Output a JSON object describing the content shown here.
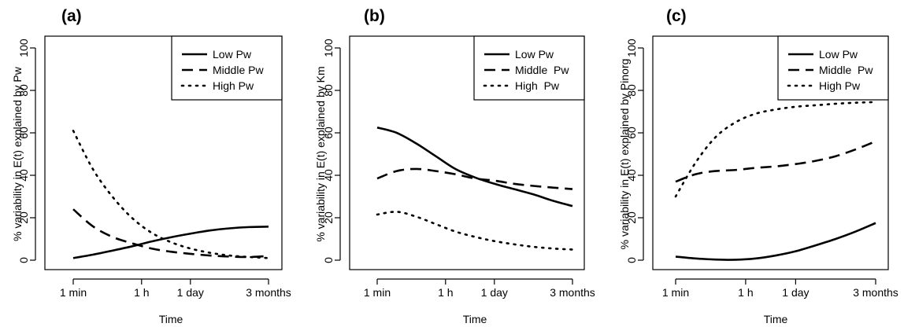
{
  "chart_data": [
    {
      "type": "line",
      "title": "(a)",
      "xlabel": "Time",
      "ylabel": "% variability in E(t) explained by Pw",
      "x_tick_labels": [
        "1 min",
        "1 h",
        "1 day",
        "3 months"
      ],
      "ylim": [
        0,
        100
      ],
      "y_ticks": [
        "0",
        "20",
        "40",
        "60",
        "80",
        "100"
      ],
      "legend_position": "top-right",
      "series": [
        {
          "name": "Low Pw",
          "style": "solid",
          "x": [
            0,
            0.1,
            0.2,
            0.3,
            0.4,
            0.5,
            0.6,
            0.7,
            0.8,
            0.9,
            1.0
          ],
          "y": [
            1,
            2.6,
            4.5,
            6.5,
            8.8,
            10.8,
            12.5,
            14,
            15,
            15.6,
            15.8
          ]
        },
        {
          "name": "Middle Pw",
          "style": "dashed",
          "x": [
            0,
            0.1,
            0.2,
            0.3,
            0.4,
            0.5,
            0.6,
            0.7,
            0.8,
            0.9,
            1.0
          ],
          "y": [
            24,
            16,
            11,
            8,
            5.5,
            4,
            3,
            2.2,
            1.7,
            1.5,
            2
          ]
        },
        {
          "name": "High Pw",
          "style": "dotted",
          "x": [
            0,
            0.1,
            0.2,
            0.3,
            0.4,
            0.5,
            0.6,
            0.7,
            0.8,
            0.9,
            1.0
          ],
          "y": [
            61,
            43,
            30,
            20,
            13,
            8.5,
            5.5,
            3.5,
            2.2,
            1.5,
            1
          ]
        }
      ]
    },
    {
      "type": "line",
      "title": "(b)",
      "xlabel": "Time",
      "ylabel": "% variability in E(t) explained by Km",
      "x_tick_labels": [
        "1 min",
        "1 h",
        "1 day",
        "3 months"
      ],
      "ylim": [
        0,
        100
      ],
      "y_ticks": [
        "0",
        "20",
        "40",
        "60",
        "80",
        "100"
      ],
      "legend_position": "top-right",
      "series": [
        {
          "name": "Low Pw",
          "style": "solid",
          "x": [
            0,
            0.1,
            0.2,
            0.3,
            0.4,
            0.5,
            0.6,
            0.7,
            0.8,
            0.9,
            1.0
          ],
          "y": [
            62.5,
            60,
            55,
            49,
            43,
            39,
            36,
            33.5,
            31,
            28,
            25.5
          ]
        },
        {
          "name": "Middle  Pw",
          "style": "dashed",
          "x": [
            0,
            0.1,
            0.2,
            0.3,
            0.4,
            0.5,
            0.6,
            0.7,
            0.8,
            0.9,
            1.0
          ],
          "y": [
            38.5,
            42,
            43,
            42,
            40.5,
            38.5,
            37.5,
            36,
            35,
            34.2,
            33.5
          ]
        },
        {
          "name": "High  Pw",
          "style": "dotted",
          "x": [
            0,
            0.1,
            0.2,
            0.3,
            0.4,
            0.5,
            0.6,
            0.7,
            0.8,
            0.9,
            1.0
          ],
          "y": [
            21.5,
            22.8,
            20.5,
            17,
            13.5,
            11,
            9,
            7.5,
            6.3,
            5.5,
            5
          ]
        }
      ]
    },
    {
      "type": "line",
      "title": "(c)",
      "xlabel": "Time",
      "ylabel": "% variability in E(t) explained by Pinorg",
      "x_tick_labels": [
        "1 min",
        "1 h",
        "1 day",
        "3 months"
      ],
      "ylim": [
        0,
        100
      ],
      "y_ticks": [
        "0",
        "20",
        "40",
        "60",
        "80",
        "100"
      ],
      "legend_position": "top-right",
      "series": [
        {
          "name": "Low Pw",
          "style": "solid",
          "x": [
            0,
            0.1,
            0.2,
            0.3,
            0.4,
            0.5,
            0.6,
            0.7,
            0.8,
            0.9,
            1.0
          ],
          "y": [
            1.7,
            0.8,
            0.3,
            0.2,
            0.8,
            2.2,
            4.2,
            7,
            10,
            13.5,
            17.5
          ]
        },
        {
          "name": "Middle  Pw",
          "style": "dashed",
          "x": [
            0,
            0.1,
            0.2,
            0.3,
            0.4,
            0.5,
            0.6,
            0.7,
            0.8,
            0.9,
            1.0
          ],
          "y": [
            37,
            40.5,
            42,
            42.5,
            43.5,
            44.2,
            45.3,
            46.8,
            49,
            52.2,
            56
          ]
        },
        {
          "name": "High Pw",
          "style": "dotted",
          "x": [
            0,
            0.1,
            0.2,
            0.3,
            0.4,
            0.5,
            0.6,
            0.7,
            0.8,
            0.9,
            1.0
          ],
          "y": [
            30,
            46,
            58,
            65,
            69,
            71,
            72.3,
            73,
            73.7,
            74.2,
            74.5
          ]
        }
      ]
    }
  ]
}
